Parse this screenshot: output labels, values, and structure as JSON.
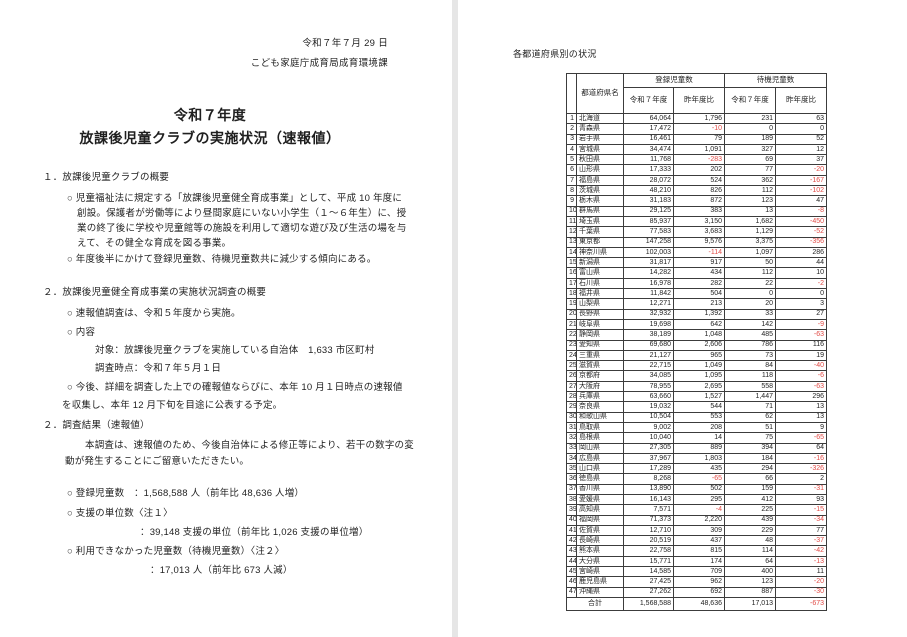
{
  "colors": {
    "negative_value": "#e14b46"
  },
  "left_page": {
    "date": "令和７年７月 29 日",
    "department": "こども家庭庁成育局成育環境課",
    "title_line1": "令和７年度",
    "title_line2": "放課後児童クラブの実施状況（速報値）",
    "section1": {
      "heading": "１．放課後児童クラブの概要",
      "bullet1_l1": "○ 児童福祉法に規定する「放課後児童健全育成事業」として、平成 10 年度に",
      "bullet1_l2": "創設。保護者が労働等により昼間家庭にいない小学生（１～６年生）に、授",
      "bullet1_l3": "業の終了後に学校や児童館等の施設を利用して適切な遊び及び生活の場を与",
      "bullet1_l4": "えて、その健全な育成を図る事業。",
      "bullet2": "○ 年度後半にかけて登録児童数、待機児童数共に減少する傾向にある。"
    },
    "section2": {
      "heading": "２．放課後児童健全育成事業の実施状況調査の概要",
      "bullet1": "○ 速報値調査は、令和５年度から実施。",
      "bullet2": "○ 内容",
      "detail1": "対象：放課後児童クラブを実施している自治体　1,633 市区町村",
      "detail2": "調査時点：令和７年５月１日",
      "bullet3_l1": "○ 今後、詳細を調査した上での確報値ならびに、本年 10 月１日時点の速報値",
      "bullet3_l2": "を収集し、本年 12 月下旬を目途に公表する予定。"
    },
    "section3": {
      "heading": "２．調査結果（速報値）",
      "para_l1": "本調査は、速報値のため、今後自治体による修正等により、若干の数字の変",
      "para_l2": "動が発生することにご留意いただきたい。",
      "bullet1": "○ 登録児童数　：1,568,588 人（前年比 48,636 人増）",
      "bullet2": "○ 支援の単位数〈注１〉",
      "bullet2_value": "：39,148 支援の単位（前年比 1,026 支援の単位増）",
      "bullet3": "○ 利用できなかった児童数（待機児童数）〈注２〉",
      "bullet3_value": "：17,013 人（前年比 673 人減）"
    }
  },
  "right_page": {
    "title": "各都道府県別の状況",
    "table": {
      "header": {
        "prefecture": "都道府県名",
        "registered_group": "登録児童数",
        "waiting_group": "待機児童数",
        "fiscal_year": "令和７年度",
        "yoy": "昨年度比"
      },
      "rows": [
        [
          "1",
          "北海道",
          "64,064",
          "1,796",
          "231",
          "63"
        ],
        [
          "2",
          "青森県",
          "17,472",
          "-10",
          "0",
          "0"
        ],
        [
          "3",
          "岩手県",
          "16,461",
          "79",
          "189",
          "52"
        ],
        [
          "4",
          "宮城県",
          "34,474",
          "1,091",
          "327",
          "12"
        ],
        [
          "5",
          "秋田県",
          "11,768",
          "-283",
          "69",
          "37"
        ],
        [
          "6",
          "山形県",
          "17,333",
          "202",
          "77",
          "-20"
        ],
        [
          "7",
          "福島県",
          "28,072",
          "524",
          "362",
          "-167"
        ],
        [
          "8",
          "茨城県",
          "48,210",
          "826",
          "112",
          "-102"
        ],
        [
          "9",
          "栃木県",
          "31,183",
          "872",
          "123",
          "47"
        ],
        [
          "10",
          "群馬県",
          "29,125",
          "383",
          "13",
          "-8"
        ],
        [
          "11",
          "埼玉県",
          "85,937",
          "3,150",
          "1,682",
          "-450"
        ],
        [
          "12",
          "千葉県",
          "77,583",
          "3,683",
          "1,129",
          "-52"
        ],
        [
          "13",
          "東京都",
          "147,258",
          "9,576",
          "3,375",
          "-356"
        ],
        [
          "14",
          "神奈川県",
          "102,003",
          "-114",
          "1,097",
          "286"
        ],
        [
          "15",
          "新潟県",
          "31,817",
          "917",
          "50",
          "44"
        ],
        [
          "16",
          "富山県",
          "14,282",
          "434",
          "112",
          "10"
        ],
        [
          "17",
          "石川県",
          "16,978",
          "282",
          "22",
          "-2"
        ],
        [
          "18",
          "福井県",
          "11,842",
          "504",
          "0",
          "0"
        ],
        [
          "19",
          "山梨県",
          "12,271",
          "213",
          "20",
          "3"
        ],
        [
          "20",
          "長野県",
          "32,932",
          "1,392",
          "33",
          "27"
        ],
        [
          "21",
          "岐阜県",
          "19,698",
          "642",
          "142",
          "-9"
        ],
        [
          "22",
          "静岡県",
          "38,189",
          "1,048",
          "485",
          "-63"
        ],
        [
          "23",
          "愛知県",
          "69,680",
          "2,606",
          "786",
          "116"
        ],
        [
          "24",
          "三重県",
          "21,127",
          "965",
          "73",
          "19"
        ],
        [
          "25",
          "滋賀県",
          "22,715",
          "1,049",
          "84",
          "-40"
        ],
        [
          "26",
          "京都府",
          "34,085",
          "1,095",
          "118",
          "-6"
        ],
        [
          "27",
          "大阪府",
          "78,955",
          "2,695",
          "558",
          "-63"
        ],
        [
          "28",
          "兵庫県",
          "63,660",
          "1,527",
          "1,447",
          "296"
        ],
        [
          "29",
          "奈良県",
          "19,032",
          "544",
          "71",
          "13"
        ],
        [
          "30",
          "和歌山県",
          "10,504",
          "553",
          "62",
          "13"
        ],
        [
          "31",
          "鳥取県",
          "9,002",
          "208",
          "51",
          "9"
        ],
        [
          "32",
          "島根県",
          "10,040",
          "14",
          "75",
          "-65"
        ],
        [
          "33",
          "岡山県",
          "27,305",
          "889",
          "394",
          "64"
        ],
        [
          "34",
          "広島県",
          "37,967",
          "1,803",
          "184",
          "-16"
        ],
        [
          "35",
          "山口県",
          "17,289",
          "435",
          "294",
          "-326"
        ],
        [
          "36",
          "徳島県",
          "8,268",
          "-65",
          "66",
          "2"
        ],
        [
          "37",
          "香川県",
          "13,890",
          "502",
          "159",
          "-31"
        ],
        [
          "38",
          "愛媛県",
          "16,143",
          "295",
          "412",
          "93"
        ],
        [
          "39",
          "高知県",
          "7,571",
          "-4",
          "225",
          "-15"
        ],
        [
          "40",
          "福岡県",
          "71,373",
          "2,220",
          "439",
          "-34"
        ],
        [
          "41",
          "佐賀県",
          "12,710",
          "309",
          "229",
          "77"
        ],
        [
          "42",
          "長崎県",
          "20,519",
          "437",
          "48",
          "-37"
        ],
        [
          "43",
          "熊本県",
          "22,758",
          "815",
          "114",
          "-42"
        ],
        [
          "44",
          "大分県",
          "15,771",
          "174",
          "64",
          "-13"
        ],
        [
          "45",
          "宮崎県",
          "14,585",
          "709",
          "400",
          "11"
        ],
        [
          "46",
          "鹿児島県",
          "27,425",
          "962",
          "123",
          "-20"
        ],
        [
          "47",
          "沖縄県",
          "27,262",
          "692",
          "887",
          "-30"
        ]
      ],
      "total_label": "合計",
      "total": [
        "1,568,588",
        "48,636",
        "17,013",
        "-673"
      ]
    }
  }
}
